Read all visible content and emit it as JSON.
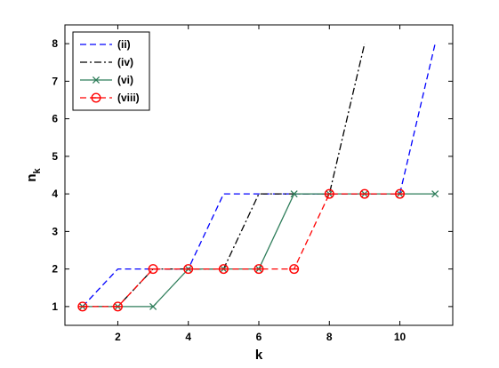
{
  "chart_data": {
    "type": "line",
    "xlabel": "k",
    "ylabel": {
      "main": "n",
      "sub": "k"
    },
    "xlim": [
      0.5,
      11.5
    ],
    "ylim": [
      0.5,
      8.5
    ],
    "xticks": [
      2,
      4,
      6,
      8,
      10
    ],
    "yticks": [
      1,
      2,
      3,
      4,
      5,
      6,
      7,
      8
    ],
    "grid": false,
    "legend_position": "top-left",
    "series": [
      {
        "name": "(ii)",
        "color": "#0000ff",
        "dash": "dashed",
        "marker": "none",
        "x": [
          1,
          2,
          3,
          4,
          5,
          6,
          7,
          8,
          9,
          10,
          11
        ],
        "y": [
          1,
          2,
          2,
          2,
          4,
          4,
          4,
          4,
          4,
          4,
          8
        ]
      },
      {
        "name": "(iv)",
        "color": "#000000",
        "dash": "dashdot",
        "marker": "none",
        "x": [
          1,
          2,
          3,
          4,
          5,
          6,
          7,
          8,
          9
        ],
        "y": [
          1,
          1,
          2,
          2,
          2,
          4,
          4,
          4,
          8
        ]
      },
      {
        "name": "(vi)",
        "color": "#2e7d5a",
        "dash": "solid",
        "marker": "x",
        "x": [
          1,
          2,
          3,
          4,
          5,
          6,
          7,
          8,
          9,
          10,
          11
        ],
        "y": [
          1,
          1,
          1,
          2,
          2,
          2,
          4,
          4,
          4,
          4,
          4
        ]
      },
      {
        "name": "(viii)",
        "color": "#ff0000",
        "dash": "dashed",
        "marker": "circle",
        "x": [
          1,
          2,
          3,
          4,
          5,
          6,
          7,
          8,
          9,
          10
        ],
        "y": [
          1,
          1,
          2,
          2,
          2,
          2,
          2,
          4,
          4,
          4
        ]
      }
    ]
  }
}
